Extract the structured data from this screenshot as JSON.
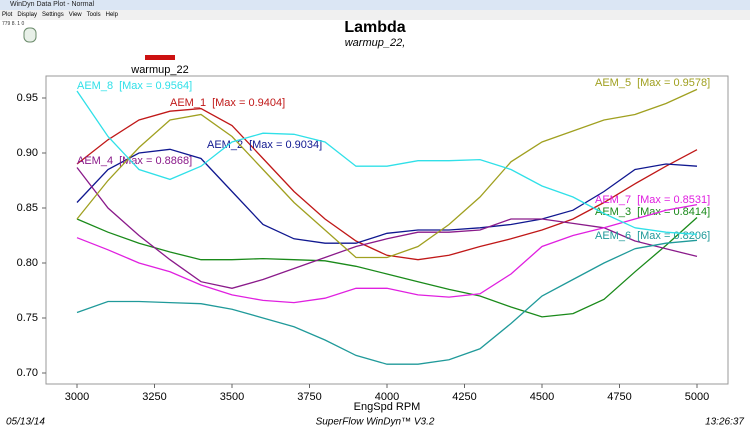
{
  "window": {
    "title": "WinDyn Data Plot - Normal",
    "menu": [
      "Plot",
      "Display",
      "Settings",
      "View",
      "Tools",
      "Help"
    ],
    "toolbar_text": "779 8. 1 0"
  },
  "chart_data": {
    "type": "line",
    "title": "Lambda",
    "subtitle": "warmup_22,",
    "legend": {
      "name": "warmup_22",
      "color": "#cc1111"
    },
    "x_label": "EngSpd RPM",
    "x": [
      3000,
      3100,
      3200,
      3300,
      3400,
      3500,
      3600,
      3700,
      3800,
      3900,
      4000,
      4100,
      4200,
      4300,
      4400,
      4500,
      4600,
      4700,
      4800,
      4900,
      5000
    ],
    "xlim": [
      2900,
      5100
    ],
    "xticks": [
      3000,
      3250,
      3500,
      3750,
      4000,
      4250,
      4500,
      4750,
      5000
    ],
    "ylim": [
      0.69,
      0.97
    ],
    "yticks": [
      {
        "value": 0.7,
        "label": "0.70"
      },
      0.75,
      {
        "value": 0.8,
        "label": "0.80"
      },
      0.85,
      {
        "value": 0.9,
        "label": "0.90"
      },
      0.95
    ],
    "series": [
      {
        "name": "AEM_1",
        "max_label": "[Max = 0.9404]",
        "color": "#c01818",
        "values": [
          0.89,
          0.912,
          0.93,
          0.938,
          0.9404,
          0.925,
          0.895,
          0.865,
          0.84,
          0.82,
          0.807,
          0.803,
          0.807,
          0.815,
          0.822,
          0.83,
          0.84,
          0.855,
          0.872,
          0.888,
          0.903
        ]
      },
      {
        "name": "AEM_2",
        "max_label": "[Max = 0.9034]",
        "color": "#101890",
        "values": [
          0.855,
          0.885,
          0.9,
          0.9034,
          0.895,
          0.865,
          0.835,
          0.822,
          0.818,
          0.818,
          0.827,
          0.83,
          0.83,
          0.832,
          0.835,
          0.84,
          0.848,
          0.865,
          0.885,
          0.89,
          0.888
        ]
      },
      {
        "name": "AEM_3",
        "max_label": "[Max = 0.8414]",
        "color": "#1a8a1a",
        "values": [
          0.84,
          0.828,
          0.818,
          0.81,
          0.803,
          0.803,
          0.804,
          0.803,
          0.802,
          0.797,
          0.79,
          0.783,
          0.776,
          0.77,
          0.76,
          0.751,
          0.754,
          0.767,
          0.792,
          0.816,
          0.8414
        ]
      },
      {
        "name": "AEM_4",
        "max_label": "[Max = 0.8868]",
        "color": "#8a1a8a",
        "values": [
          0.8868,
          0.85,
          0.825,
          0.803,
          0.783,
          0.777,
          0.785,
          0.795,
          0.805,
          0.815,
          0.822,
          0.828,
          0.828,
          0.83,
          0.84,
          0.84,
          0.836,
          0.832,
          0.82,
          0.813,
          0.806
        ]
      },
      {
        "name": "AEM_5",
        "max_label": "[Max = 0.9578]",
        "color": "#a0a020",
        "values": [
          0.84,
          0.875,
          0.905,
          0.93,
          0.935,
          0.915,
          0.885,
          0.855,
          0.83,
          0.805,
          0.805,
          0.815,
          0.835,
          0.86,
          0.892,
          0.91,
          0.92,
          0.93,
          0.935,
          0.945,
          0.9578
        ]
      },
      {
        "name": "AEM_6",
        "max_label": "[Max = 0.8206]",
        "color": "#209a9a",
        "values": [
          0.755,
          0.765,
          0.765,
          0.764,
          0.763,
          0.758,
          0.75,
          0.742,
          0.73,
          0.716,
          0.708,
          0.708,
          0.712,
          0.722,
          0.745,
          0.77,
          0.785,
          0.8,
          0.813,
          0.818,
          0.8206
        ]
      },
      {
        "name": "AEM_7",
        "max_label": "[Max = 0.8531]",
        "color": "#e020e0",
        "values": [
          0.823,
          0.812,
          0.8,
          0.792,
          0.78,
          0.771,
          0.766,
          0.764,
          0.768,
          0.777,
          0.777,
          0.771,
          0.769,
          0.772,
          0.79,
          0.815,
          0.825,
          0.832,
          0.84,
          0.848,
          0.8531
        ]
      },
      {
        "name": "AEM_8",
        "max_label": "[Max = 0.9564]",
        "color": "#30e0e8",
        "values": [
          0.9564,
          0.915,
          0.885,
          0.876,
          0.888,
          0.91,
          0.918,
          0.917,
          0.91,
          0.888,
          0.888,
          0.893,
          0.893,
          0.894,
          0.885,
          0.87,
          0.86,
          0.845,
          0.832,
          0.828,
          0.826
        ]
      }
    ]
  },
  "footer": {
    "date": "05/13/14",
    "product": "SuperFlow WinDyn™ V3.2",
    "time": "13:26:37"
  }
}
